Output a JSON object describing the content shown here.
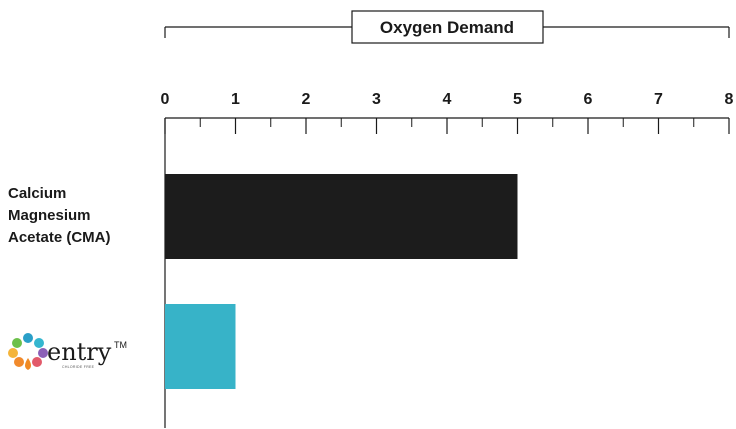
{
  "chart_data": {
    "type": "bar",
    "orientation": "horizontal",
    "title": "Oxygen Demand",
    "categories": [
      "Calcium Magnesium Acetate (CMA)",
      "Sentry"
    ],
    "category_label_lines": [
      [
        "Calcium",
        "Magnesium",
        "Acetate (CMA)"
      ]
    ],
    "values": [
      5,
      1
    ],
    "colors": [
      "#1c1c1c",
      "#37b3c8"
    ],
    "xlim": [
      0,
      8
    ],
    "x_ticks": [
      0,
      1,
      2,
      3,
      4,
      5,
      6,
      7,
      8
    ],
    "minor_ticks": true,
    "grid": false,
    "legend": "none",
    "logo": {
      "wordmark": "entry",
      "trademark": "TM",
      "subtitle": "CHLORIDE FREE",
      "icon": "flower-drop-icon"
    }
  }
}
